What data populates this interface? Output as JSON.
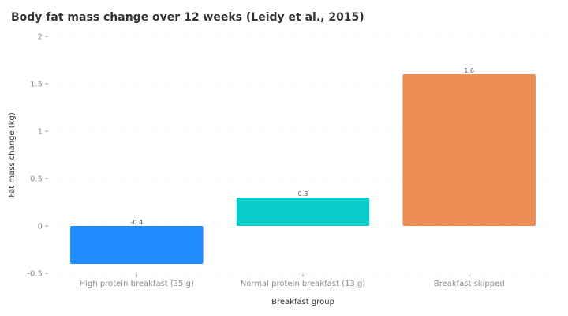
{
  "chart_data": {
    "type": "bar",
    "title": "Body fat mass change over 12 weeks (Leidy et al., 2015)",
    "xlabel": "Breakfast group",
    "ylabel": "Fat mass change (kg)",
    "categories": [
      "High protein breakfast (35 g)",
      "Normal protein breakfast (13 g)",
      "Breakfast skipped"
    ],
    "values": [
      -0.4,
      0.3,
      1.6
    ],
    "data_labels": [
      "-0.4",
      "0.3",
      "1.6"
    ],
    "colors": [
      "#1f8cff",
      "#0bcbc8",
      "#ee8d55"
    ],
    "ylim": [
      -0.5,
      2
    ],
    "yticks": [
      -0.5,
      0,
      0.5,
      1,
      1.5,
      2
    ],
    "ytick_labels": [
      "-0.5",
      "0",
      "0.5",
      "1",
      "1.5",
      "2"
    ],
    "grid": true,
    "legend": "none"
  }
}
